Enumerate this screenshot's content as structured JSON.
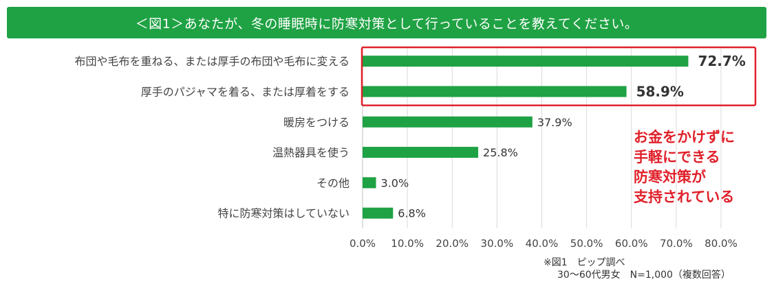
{
  "title": "＜図1＞あなたが、冬の睡眠時に防寒対策として行っていることを教えてください。",
  "chart_data": {
    "type": "bar",
    "orientation": "horizontal",
    "categories": [
      "布団や毛布を重ねる、または厚手の布団や毛布に変える",
      "厚手のパジャマを着る、または厚着をする",
      "暖房をつける",
      "温熱器具を使う",
      "その他",
      "特に防寒対策はしていない"
    ],
    "values": [
      72.7,
      58.9,
      37.9,
      25.8,
      3.0,
      6.8
    ],
    "value_labels": [
      "72.7%",
      "58.9%",
      "37.9%",
      "25.8%",
      "3.0%",
      "6.8%"
    ],
    "highlighted": [
      true,
      true,
      false,
      false,
      false,
      false
    ],
    "xlim": [
      0,
      80
    ],
    "x_ticks": [
      "0.0%",
      "10.0%",
      "20.0%",
      "30.0%",
      "40.0%",
      "50.0%",
      "60.0%",
      "70.0%",
      "80.0%"
    ],
    "grid": true,
    "xlabel": "",
    "ylabel": ""
  },
  "source_note": [
    "※図1　ピップ調べ",
    "30～60代男女　N=1,000（複数回答）"
  ],
  "annotation_lines": [
    "お金をかけずに",
    "手軽にできる",
    "防寒対策が",
    "支持されている"
  ],
  "colors": {
    "banner": "#1fa244",
    "bar": "#1fa244",
    "highlight_box": "#e0202a",
    "annotation": "#e0202a",
    "grid": "#d9d9d9"
  }
}
